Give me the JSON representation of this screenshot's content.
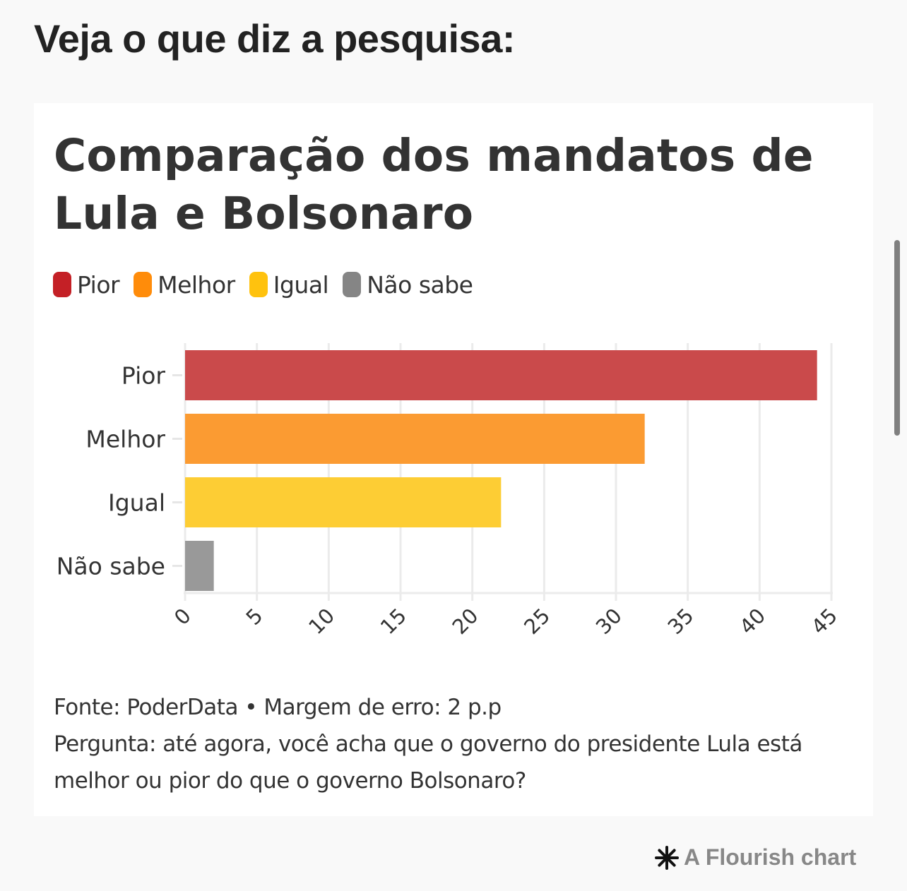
{
  "page": {
    "heading": "Veja o que diz a pesquisa:"
  },
  "chart_data": {
    "type": "bar",
    "orientation": "horizontal",
    "title": "Comparação dos mandatos de Lula e Bolsonaro",
    "categories": [
      "Pior",
      "Melhor",
      "Igual",
      "Não sabe"
    ],
    "values": [
      44,
      32,
      22,
      2
    ],
    "colors": [
      "#CA4A4B",
      "#FB9B32",
      "#FDCD34",
      "#999999"
    ],
    "xlabel": "",
    "ylabel": "",
    "xlim": [
      0,
      45
    ],
    "x_ticks": [
      0,
      5,
      10,
      15,
      20,
      25,
      30,
      35,
      40,
      45
    ],
    "grid": true,
    "legend": {
      "placement": "top-left",
      "entries": [
        {
          "label": "Pior",
          "color": "#C42026"
        },
        {
          "label": "Melhor",
          "color": "#FF8C0A"
        },
        {
          "label": "Igual",
          "color": "#FFC20E"
        },
        {
          "label": "Não sabe",
          "color": "#858585"
        }
      ]
    }
  },
  "footer": {
    "source": "Fonte: PoderData • Margem de erro: 2 p.p",
    "question": "Pergunta: até agora, você acha que o governo do presidente Lula está melhor ou pior do que o governo Bolsonaro?"
  },
  "credit": {
    "label": "A Flourish chart",
    "icon": "asterisk-icon"
  }
}
